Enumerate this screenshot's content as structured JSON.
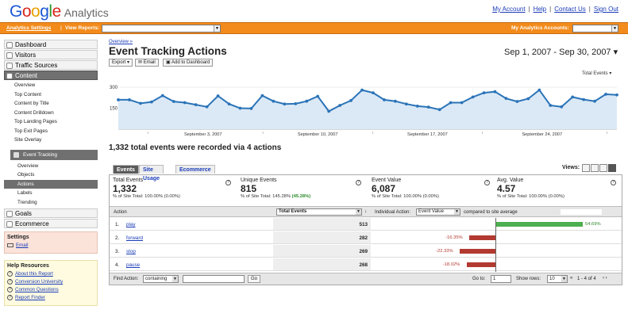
{
  "logo": {
    "google": "Google",
    "analytics": "Analytics"
  },
  "top_links": [
    "My Account",
    "Help",
    "Contact Us",
    "Sign Out"
  ],
  "topbar": {
    "settings": "Analytics Settings",
    "view_reports": "View Reports:",
    "my_accounts": "My Analytics Accounts:"
  },
  "sidebar": {
    "dashboard": "Dashboard",
    "visitors": "Visitors",
    "traffic": "Traffic Sources",
    "content": "Content",
    "content_items": [
      "Overview",
      "Top Content",
      "Content by Title",
      "Content Drilldown",
      "Top Landing Pages",
      "Top Exit Pages",
      "Site Overlay"
    ],
    "event_tracking": "Event Tracking",
    "event_items": [
      "Overview",
      "Objects",
      "Actions",
      "Labels",
      "Trending"
    ],
    "goals": "Goals",
    "ecommerce": "Ecommerce",
    "settings_title": "Settings",
    "email": "Email",
    "help_title": "Help Resources",
    "help_items": [
      "About this Report",
      "Conversion University",
      "Common Questions",
      "Report Finder"
    ]
  },
  "page": {
    "breadcrumb": "Overview »",
    "title": "Event Tracking Actions",
    "export": "Export ▾",
    "email": "Email",
    "add_dashboard": "Add to Dashboard",
    "date_range": "Sep 1, 2007 - Sep 30, 2007 ▾",
    "metric_select": "Total Events ▾",
    "summary": "1,332 total events were recorded via 4 actions"
  },
  "chart_data": {
    "type": "line",
    "y_ticks": [
      "300",
      "150"
    ],
    "ylim": [
      0,
      340
    ],
    "x_labels": [
      "September 3, 2007",
      "September 10, 2007",
      "September 17, 2007",
      "September 24, 2007"
    ],
    "series": [
      {
        "values": [
          210,
          210,
          185,
          195,
          240,
          198,
          190,
          175,
          160,
          238,
          180,
          150,
          148,
          240,
          200,
          180,
          182,
          200,
          235,
          128,
          170,
          205,
          280,
          260,
          210,
          200,
          180,
          165,
          158,
          140,
          190,
          190,
          230,
          260,
          268,
          220,
          198,
          218,
          280,
          170,
          160,
          230,
          212,
          200,
          250,
          245
        ]
      }
    ]
  },
  "tabs": [
    "Events",
    "Site Usage",
    "Ecommerce"
  ],
  "views_label": "Views:",
  "stats": [
    {
      "name": "Total Events",
      "value": "1,332",
      "sub": "% of Site Total: 100.00% (0.00%)"
    },
    {
      "name": "Unique Events",
      "value": "815",
      "sub": "% of Site Total: 145.28% ",
      "sub2": "(45.28%)"
    },
    {
      "name": "Event Value",
      "value": "6,087",
      "sub": "% of Site Total: 100.00% (0.00%)"
    },
    {
      "name": "Avg. Value",
      "value": "4.57",
      "sub": "% of Site Total: 100.00% (0.00%)"
    }
  ],
  "table": {
    "col_action": "Action",
    "col_total": "Total Events",
    "individual_action": "Individual Action:",
    "event_value": "Event Value",
    "compared": "compared to site average",
    "rows": [
      {
        "n": "1.",
        "action": "play",
        "total": "513",
        "pct": "54.69%",
        "ratio": 0.5469
      },
      {
        "n": "2.",
        "action": "forward",
        "total": "282",
        "pct": "-16.35%",
        "ratio": -0.1635
      },
      {
        "n": "3.",
        "action": "stop",
        "total": "269",
        "pct": "-22.33%",
        "ratio": -0.2233
      },
      {
        "n": "4.",
        "action": "pause",
        "total": "268",
        "pct": "-18.02%",
        "ratio": -0.1802
      }
    ]
  },
  "footer": {
    "find_action": "Find Action:",
    "containing": "containing",
    "go": "Go",
    "goto": "Go to:",
    "goto_val": "1",
    "show_rows": "Show rows:",
    "rows_val": "10",
    "range": "1 - 4 of 4"
  },
  "colors": {
    "orange": "#f28b1b",
    "line": "#2b74b8",
    "fill": "#dbe9f6",
    "pos": "#4caf50",
    "neg": "#b23a30"
  }
}
